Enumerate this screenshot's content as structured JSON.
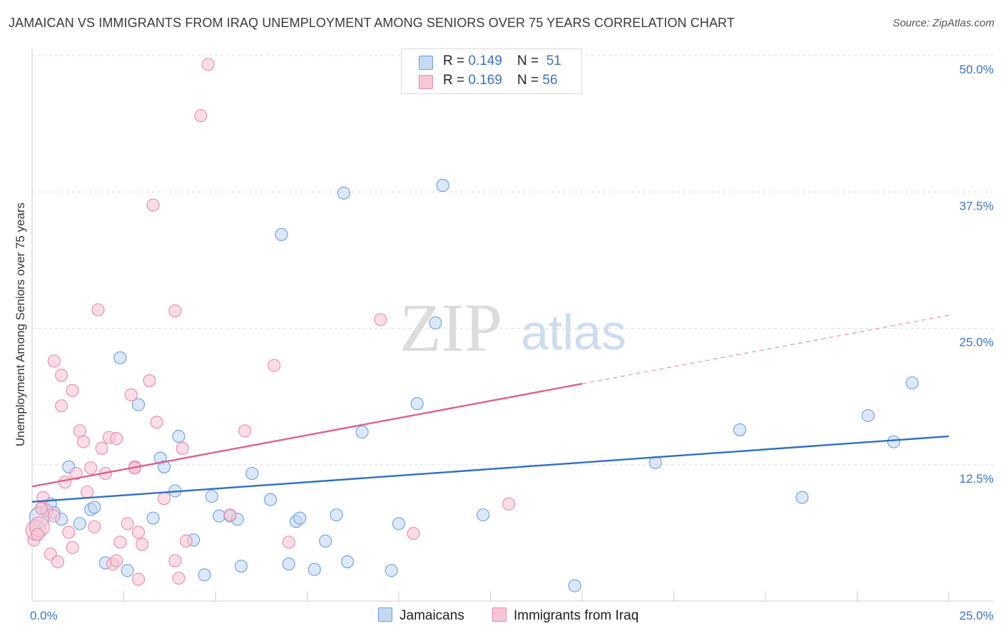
{
  "title": "JAMAICAN VS IMMIGRANTS FROM IRAQ UNEMPLOYMENT AMONG SENIORS OVER 75 YEARS CORRELATION CHART",
  "source": "Source: ZipAtlas.com",
  "watermark": {
    "zip": "ZIP",
    "atlas": "atlas"
  },
  "legend": {
    "series1": {
      "r_label": "R = ",
      "r_value": "0.149",
      "n_label": "N = ",
      "n_value": "51"
    },
    "series2": {
      "r_label": "R = ",
      "r_value": "0.169",
      "n_label": "N = ",
      "n_value": "56"
    }
  },
  "chart_data": {
    "type": "scatter",
    "title": "JAMAICAN VS IMMIGRANTS FROM IRAQ UNEMPLOYMENT AMONG SENIORS OVER 75 YEARS CORRELATION CHART",
    "xlabel": "",
    "ylabel": "Unemployment Among Seniors over 75 years",
    "xlim": [
      0,
      25
    ],
    "ylim": [
      0,
      50
    ],
    "x_tick_labels": [
      "0.0%",
      "25.0%"
    ],
    "y_ticks": [
      12.5,
      25.0,
      37.5,
      50.0
    ],
    "y_tick_labels": [
      "12.5%",
      "25.0%",
      "37.5%",
      "50.0%"
    ],
    "grid": true,
    "legend_position": "top-center",
    "series": [
      {
        "name": "Jamaicans",
        "color": "#6a9ee0",
        "fill": "#c5d9f3",
        "trend": {
          "x": [
            0,
            25
          ],
          "y": [
            9.1,
            15.1
          ],
          "solid_to": 25
        },
        "points": [
          [
            0.1,
            6.9
          ],
          [
            0.3,
            8.6
          ],
          [
            0.5,
            8.9
          ],
          [
            0.6,
            8.1
          ],
          [
            0.8,
            7.5
          ],
          [
            1.0,
            12.3
          ],
          [
            1.3,
            7.1
          ],
          [
            1.6,
            8.4
          ],
          [
            1.7,
            8.6
          ],
          [
            2.0,
            3.5
          ],
          [
            2.4,
            22.3
          ],
          [
            2.6,
            2.8
          ],
          [
            2.9,
            18.0
          ],
          [
            3.3,
            7.6
          ],
          [
            3.5,
            13.1
          ],
          [
            3.6,
            12.3
          ],
          [
            3.9,
            10.1
          ],
          [
            4.0,
            15.1
          ],
          [
            4.4,
            5.6
          ],
          [
            4.7,
            2.4
          ],
          [
            4.9,
            9.6
          ],
          [
            5.1,
            7.8
          ],
          [
            5.4,
            7.8
          ],
          [
            5.6,
            7.5
          ],
          [
            5.7,
            3.2
          ],
          [
            6.0,
            11.7
          ],
          [
            6.5,
            9.3
          ],
          [
            6.8,
            33.6
          ],
          [
            7.0,
            3.4
          ],
          [
            7.2,
            7.3
          ],
          [
            7.3,
            7.6
          ],
          [
            7.7,
            2.9
          ],
          [
            8.0,
            5.5
          ],
          [
            8.3,
            7.9
          ],
          [
            8.5,
            37.4
          ],
          [
            8.6,
            3.6
          ],
          [
            9.0,
            15.5
          ],
          [
            9.8,
            2.8
          ],
          [
            10.0,
            7.1
          ],
          [
            10.5,
            18.1
          ],
          [
            11.0,
            25.5
          ],
          [
            11.2,
            38.1
          ],
          [
            12.3,
            7.9
          ],
          [
            14.8,
            1.4
          ],
          [
            17.0,
            12.7
          ],
          [
            19.3,
            15.7
          ],
          [
            21.0,
            9.5
          ],
          [
            22.8,
            17.0
          ],
          [
            24.0,
            20.0
          ],
          [
            23.5,
            14.6
          ],
          [
            0.2,
            7.7
          ]
        ]
      },
      {
        "name": "Immigrants from Iraq",
        "color": "#e88aaa",
        "fill": "#f7c6d6",
        "trend": {
          "x": [
            0,
            25
          ],
          "y": [
            10.5,
            26.2
          ],
          "solid_to": 15
        },
        "points": [
          [
            0.05,
            5.6
          ],
          [
            0.1,
            6.5
          ],
          [
            0.2,
            6.8
          ],
          [
            0.3,
            9.5
          ],
          [
            0.4,
            8.3
          ],
          [
            0.5,
            4.3
          ],
          [
            0.6,
            7.8
          ],
          [
            0.6,
            22.0
          ],
          [
            0.7,
            3.6
          ],
          [
            0.8,
            20.7
          ],
          [
            0.8,
            17.9
          ],
          [
            0.9,
            10.9
          ],
          [
            1.0,
            6.3
          ],
          [
            1.1,
            4.9
          ],
          [
            1.1,
            19.3
          ],
          [
            1.2,
            11.7
          ],
          [
            1.3,
            15.6
          ],
          [
            1.4,
            14.6
          ],
          [
            1.5,
            10.0
          ],
          [
            1.6,
            12.2
          ],
          [
            1.7,
            6.8
          ],
          [
            1.8,
            26.7
          ],
          [
            1.9,
            14.0
          ],
          [
            2.0,
            11.7
          ],
          [
            2.1,
            15.0
          ],
          [
            2.2,
            3.4
          ],
          [
            2.3,
            14.9
          ],
          [
            2.3,
            3.7
          ],
          [
            2.4,
            5.4
          ],
          [
            2.6,
            7.1
          ],
          [
            2.7,
            18.9
          ],
          [
            2.8,
            12.3
          ],
          [
            2.9,
            6.3
          ],
          [
            2.9,
            2.0
          ],
          [
            3.0,
            5.2
          ],
          [
            3.2,
            20.2
          ],
          [
            3.3,
            36.3
          ],
          [
            3.4,
            16.4
          ],
          [
            3.6,
            9.4
          ],
          [
            3.9,
            26.6
          ],
          [
            3.9,
            3.7
          ],
          [
            4.0,
            2.1
          ],
          [
            4.1,
            14.0
          ],
          [
            4.2,
            5.5
          ],
          [
            4.6,
            44.5
          ],
          [
            4.8,
            49.2
          ],
          [
            5.4,
            7.9
          ],
          [
            5.8,
            15.6
          ],
          [
            6.6,
            21.6
          ],
          [
            7.0,
            5.4
          ],
          [
            9.5,
            25.8
          ],
          [
            10.4,
            6.2
          ],
          [
            13.0,
            8.9
          ],
          [
            0.15,
            6.1
          ],
          [
            0.25,
            8.5
          ],
          [
            2.8,
            12.2
          ]
        ]
      }
    ]
  }
}
